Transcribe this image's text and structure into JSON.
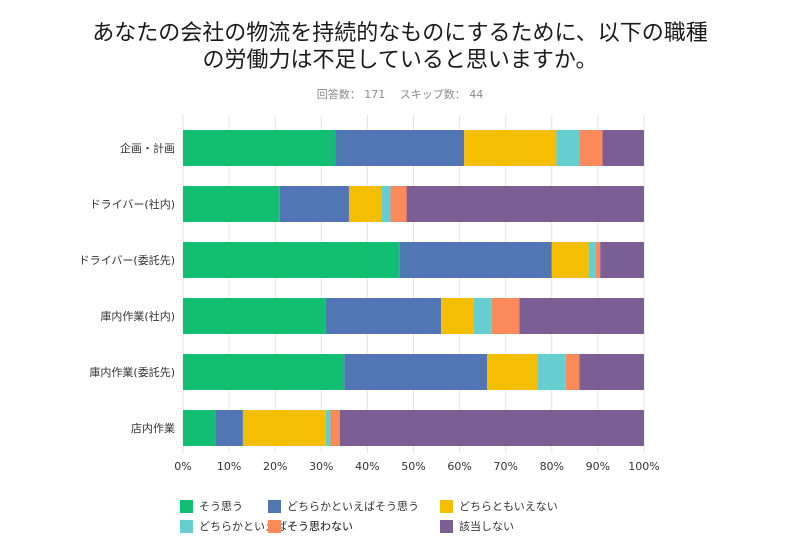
{
  "title_line1": "あなたの会社の物流を持続的なものにするために、以下の職種",
  "title_line2": "の労働力は不足していると思いますか。",
  "subtitle": "回答数： 171　 スキップ数： 44",
  "chart_data": {
    "type": "bar",
    "orientation": "horizontal",
    "stacked": true,
    "percent": true,
    "categories": [
      "企画・計画",
      "ドライバー(社内)",
      "ドライバー(委託先)",
      "庫内作業(社内)",
      "庫内作業(委託先)",
      "店内作業"
    ],
    "xlim": [
      0,
      100
    ],
    "xticks": [
      "0%",
      "10%",
      "20%",
      "30%",
      "40%",
      "50%",
      "60%",
      "70%",
      "80%",
      "90%",
      "100%"
    ],
    "grid": true,
    "legend_position": "bottom",
    "series": [
      {
        "name": "そう思う",
        "color": "#13BE72",
        "values": [
          33,
          21,
          47,
          31,
          35,
          7
        ]
      },
      {
        "name": "どちらかといえばそう思う",
        "color": "#5077B4",
        "values": [
          28,
          15,
          33,
          25,
          31,
          6
        ]
      },
      {
        "name": "どちらともいえない",
        "color": "#F5BE00",
        "values": [
          20,
          7,
          8,
          7,
          11,
          18
        ]
      },
      {
        "name": "どちらかといえばそう思わない",
        "color": "#66CED1",
        "values": [
          5,
          2,
          1.5,
          4,
          6,
          1
        ]
      },
      {
        "name": "そう思わない",
        "color": "#FB8A5A",
        "values": [
          5,
          3.5,
          1,
          6,
          3,
          2
        ]
      },
      {
        "name": "該当しない",
        "color": "#7B5E94",
        "values": [
          9,
          51.5,
          9.5,
          27,
          14,
          66
        ]
      }
    ]
  }
}
